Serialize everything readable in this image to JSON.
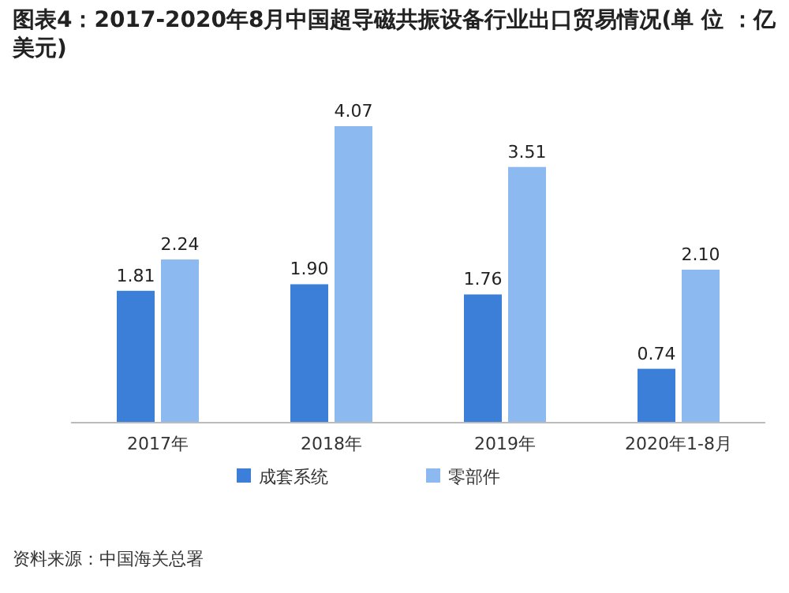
{
  "chart_data": {
    "type": "bar",
    "title": "图表4：2017-2020年8月中国超导磁共振设备行业出口贸易情况(单 位 ：亿美元)",
    "categories": [
      "2017年",
      "2018年",
      "2019年",
      "2020年1-8月"
    ],
    "series": [
      {
        "name": "成套系统",
        "color": "#3c7fd9",
        "values": [
          1.81,
          1.9,
          1.76,
          0.74
        ],
        "value_labels": [
          "1.81",
          "1.90",
          "1.76",
          "0.74"
        ]
      },
      {
        "name": "零部件",
        "color": "#8cb9ef",
        "values": [
          2.24,
          4.07,
          3.51,
          2.1
        ],
        "value_labels": [
          "2.24",
          "4.07",
          "3.51",
          "2.10"
        ]
      }
    ],
    "legend": "bottom",
    "annotations": [
      "资料来源：中国海关总署"
    ]
  }
}
